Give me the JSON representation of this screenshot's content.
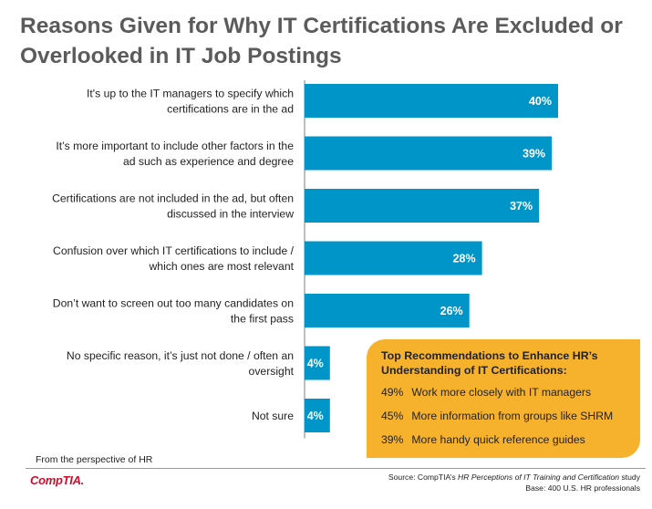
{
  "title": "Reasons Given for Why IT Certifications Are Excluded or Overlooked in IT Job Postings",
  "colors": {
    "bar": "#0095c8",
    "axis": "#7f7f7f",
    "callout": "#f7b22d",
    "title": "#5b5b5b",
    "brand": "#c8102e"
  },
  "chart_data": {
    "type": "bar",
    "orientation": "horizontal",
    "title": "Reasons Given for Why IT Certifications Are Excluded or Overlooked in IT Job Postings",
    "categories": [
      [
        "It's up to the IT managers to specify which",
        "certifications are in the ad"
      ],
      [
        "It’s more important to include other factors in the",
        "ad such as experience and degree"
      ],
      [
        "Certifications are not included in the ad, but often",
        "discussed in the interview"
      ],
      [
        "Confusion over which IT certifications to include /",
        "which ones are most relevant"
      ],
      [
        "Don’t want to screen out too many candidates on",
        "the first pass"
      ],
      [
        "No specific reason, it’s just not done / often an",
        "oversight"
      ],
      [
        "Not sure"
      ]
    ],
    "values": [
      40,
      39,
      37,
      28,
      26,
      4,
      4
    ],
    "value_labels": [
      "40%",
      "39%",
      "37%",
      "28%",
      "26%",
      "4%",
      "4%"
    ],
    "xlim": [
      0,
      50
    ],
    "grid": false
  },
  "callout": {
    "title_line1": "Top Recommendations to Enhance HR’s",
    "title_line2": "Understanding of IT Certifications:",
    "items": [
      {
        "pct": "49%",
        "text": "Work more closely with IT managers"
      },
      {
        "pct": "45%",
        "text": "More information from groups like SHRM"
      },
      {
        "pct": "39%",
        "text": "More handy quick reference guides"
      }
    ]
  },
  "footnote": "From the perspective of HR",
  "logo_text": "CompTIA.",
  "source": {
    "prefix": "Source: CompTIA’s ",
    "study": "HR Perceptions of IT Training and Certification",
    "suffix": " study",
    "base": "Base: 400 U.S. HR professionals"
  }
}
